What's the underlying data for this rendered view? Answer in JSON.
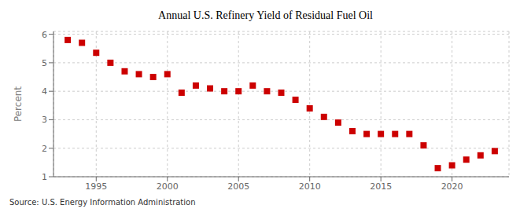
{
  "chart_data": {
    "type": "scatter",
    "title": "Annual U.S. Refinery Yield of Residual Fuel Oil",
    "ylabel": "Percent",
    "annotations": [
      "Source: U.S. Energy Information Administration"
    ],
    "x": [
      1993,
      1994,
      1995,
      1996,
      1997,
      1998,
      1999,
      2000,
      2001,
      2002,
      2003,
      2004,
      2005,
      2006,
      2007,
      2008,
      2009,
      2010,
      2011,
      2012,
      2013,
      2014,
      2015,
      2016,
      2017,
      2018,
      2019,
      2020,
      2021,
      2022,
      2023
    ],
    "values": [
      5.8,
      5.7,
      5.35,
      5.0,
      4.7,
      4.6,
      4.5,
      4.6,
      3.95,
      4.2,
      4.1,
      4.0,
      4.0,
      4.2,
      4.0,
      3.95,
      3.7,
      3.4,
      3.1,
      2.9,
      2.6,
      2.5,
      2.5,
      2.5,
      2.5,
      2.1,
      1.3,
      1.4,
      1.6,
      1.75,
      1.9
    ],
    "color": "#cc0000",
    "marker": "square",
    "xlim": [
      1992.0,
      2024.0
    ],
    "xticks": [
      1995,
      2000,
      2005,
      2010,
      2015,
      2020
    ],
    "ylim": [
      1,
      6.1
    ],
    "yticks": [
      1,
      2,
      3,
      4,
      5,
      6
    ],
    "grid": true
  }
}
